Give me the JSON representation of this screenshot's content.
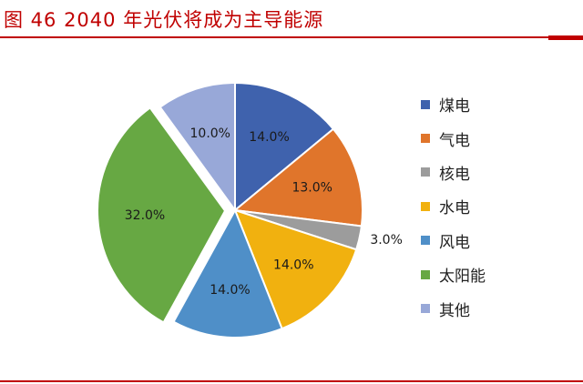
{
  "header": {
    "title": "图 46 2040 年光伏将成为主导能源"
  },
  "colors": {
    "accent": "#c00000"
  },
  "chart_data": {
    "type": "pie",
    "title": "",
    "labels": [
      "煤电",
      "气电",
      "核电",
      "水电",
      "风电",
      "太阳能",
      "其他"
    ],
    "values": [
      14.0,
      13.0,
      3.0,
      14.0,
      14.0,
      32.0,
      10.0
    ],
    "value_labels": [
      "14.0%",
      "13.0%",
      "3.0%",
      "14.0%",
      "14.0%",
      "32.0%",
      "10.0%"
    ],
    "colors": [
      "#3f62ad",
      "#e0752b",
      "#9c9c9c",
      "#f1b10f",
      "#4f8fc8",
      "#67a843",
      "#98a8d8"
    ],
    "exploded": [
      "太阳能"
    ],
    "legend_position": "right"
  }
}
